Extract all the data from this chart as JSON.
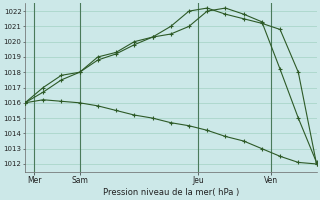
{
  "background_color": "#cce8e8",
  "grid_color": "#99ccbb",
  "line_color": "#2d5a27",
  "xlabel": "Pression niveau de la mer( hPa )",
  "ylim": [
    1011.5,
    1022.5
  ],
  "yticks": [
    1012,
    1013,
    1014,
    1015,
    1016,
    1017,
    1018,
    1019,
    1020,
    1021,
    1022
  ],
  "xlim": [
    0,
    16
  ],
  "xtick_labels": [
    "Mer",
    "Sam",
    "Jeu",
    "Ven"
  ],
  "xtick_positions": [
    0.5,
    3.0,
    9.5,
    13.5
  ],
  "vline_positions": [
    0.5,
    3.0,
    9.5,
    13.5
  ],
  "series1_x": [
    0,
    1,
    2,
    3,
    4,
    5,
    6,
    7,
    8,
    9,
    10,
    11,
    12,
    13,
    14,
    15,
    16
  ],
  "series1_y": [
    1016.0,
    1016.2,
    1016.1,
    1016.0,
    1015.8,
    1015.5,
    1015.2,
    1015.0,
    1014.7,
    1014.5,
    1014.2,
    1013.8,
    1013.5,
    1013.0,
    1012.5,
    1012.1,
    1012.0
  ],
  "series2_x": [
    0,
    1,
    2,
    3,
    4,
    5,
    6,
    7,
    8,
    9,
    10,
    11,
    12,
    13,
    14,
    15,
    16
  ],
  "series2_y": [
    1016.0,
    1016.7,
    1017.5,
    1018.0,
    1018.8,
    1019.2,
    1019.8,
    1020.3,
    1021.0,
    1022.0,
    1022.2,
    1021.8,
    1021.5,
    1021.2,
    1020.8,
    1018.0,
    1012.0
  ],
  "series3_x": [
    0,
    1,
    2,
    3,
    4,
    5,
    6,
    7,
    8,
    9,
    10,
    11,
    12,
    13,
    14,
    15,
    16
  ],
  "series3_y": [
    1016.0,
    1017.0,
    1017.8,
    1018.0,
    1019.0,
    1019.3,
    1020.0,
    1020.3,
    1020.5,
    1021.0,
    1022.0,
    1022.2,
    1021.8,
    1021.3,
    1018.2,
    1015.0,
    1012.1
  ]
}
